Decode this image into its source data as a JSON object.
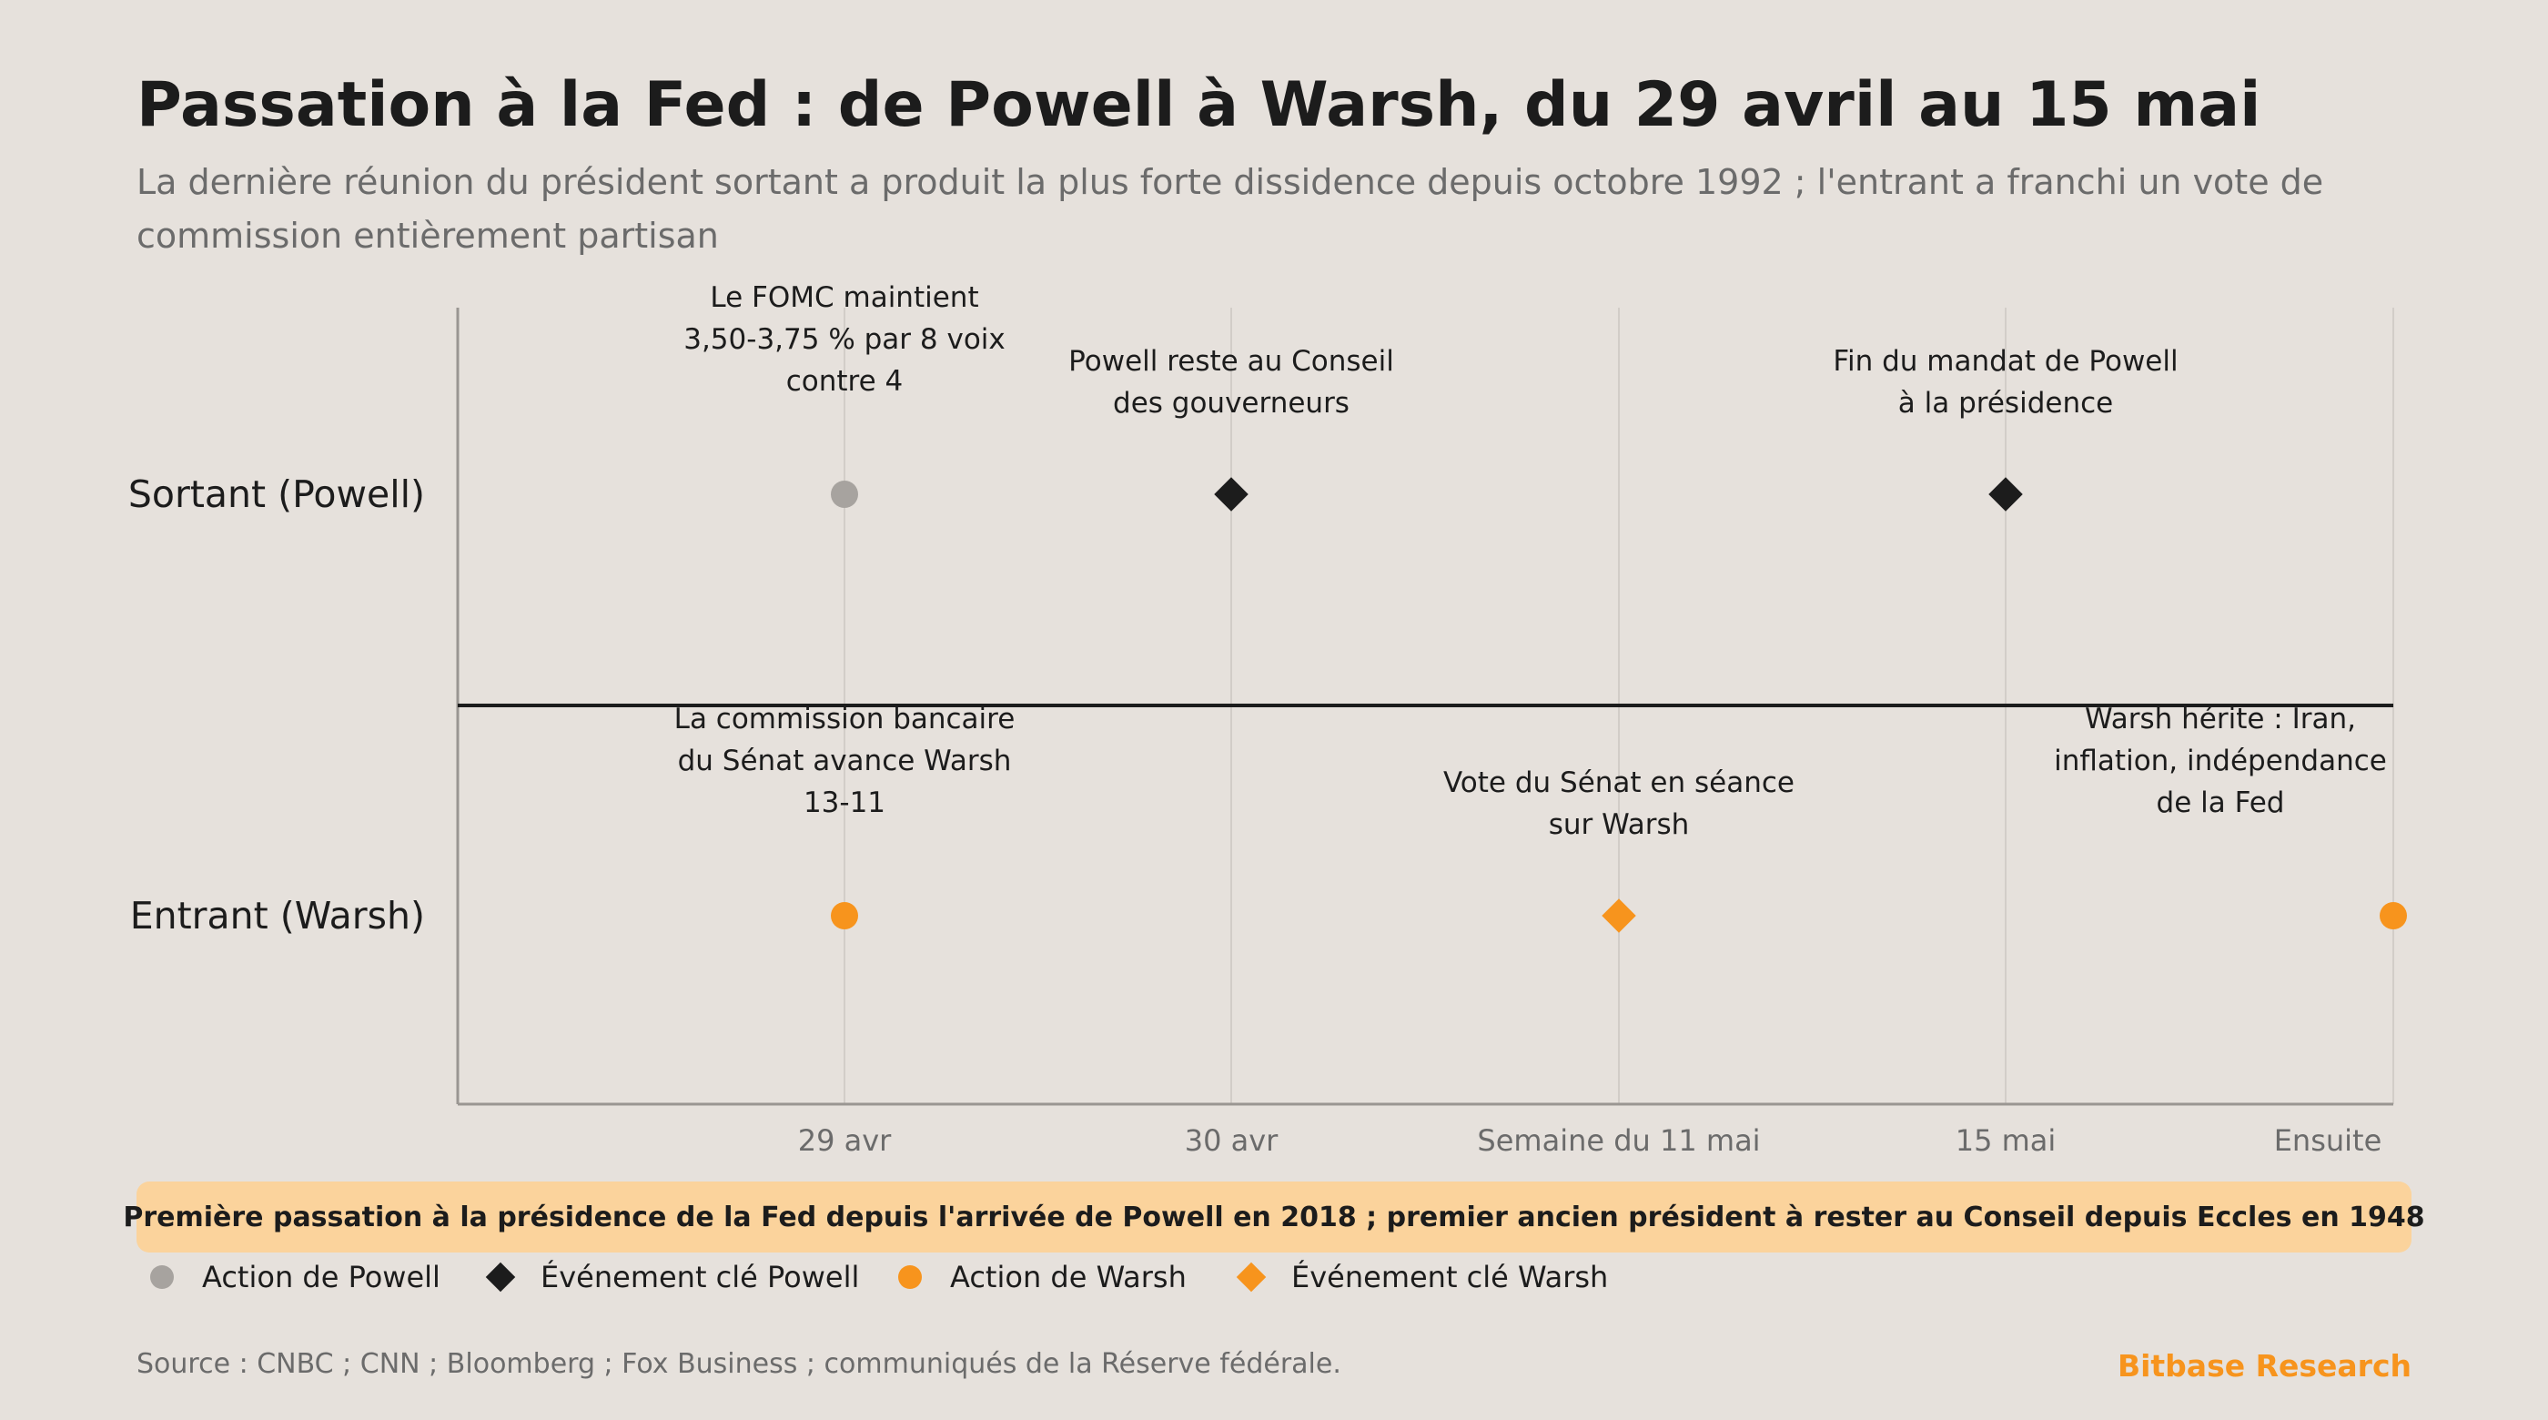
{
  "header": {
    "title": "Passation à la Fed : de Powell à Warsh, du 29 avril au 15 mai",
    "subtitle_lines": [
      "La dernière réunion du président sortant a produit la plus forte dissidence depuis octobre 1992 ; l'entrant a franchi un vote de",
      "commission entièrement partisan"
    ]
  },
  "colors": {
    "background": "#e6e1dc",
    "powell_action": "#a7a39f",
    "powell_key": "#1c1c1c",
    "warsh": "#f7941d",
    "banner": "#fbd39c",
    "gridline": "#d2cdc8",
    "axis": "#9a9692"
  },
  "chart_data": {
    "type": "timeline",
    "categories": [
      "29 avr",
      "30 avr",
      "Semaine du 11 mai",
      "15 mai",
      "Ensuite"
    ],
    "rows": [
      "Sortant (Powell)",
      "Entrant (Warsh)"
    ],
    "events": [
      {
        "row": 0,
        "x": 0,
        "marker": "circle",
        "color": "#a7a39f",
        "label": [
          "Le FOMC maintient",
          "3,50-3,75 % par 8 voix",
          "contre 4"
        ]
      },
      {
        "row": 0,
        "x": 1,
        "marker": "diamond",
        "color": "#1c1c1c",
        "label": [
          "Powell reste au Conseil",
          "des gouverneurs"
        ]
      },
      {
        "row": 0,
        "x": 3,
        "marker": "diamond",
        "color": "#1c1c1c",
        "label": [
          "Fin du mandat de Powell",
          "à la présidence"
        ]
      },
      {
        "row": 1,
        "x": 0,
        "marker": "circle",
        "color": "#f7941d",
        "label": [
          "La commission bancaire",
          "du Sénat avance Warsh",
          "13-11"
        ]
      },
      {
        "row": 1,
        "x": 2,
        "marker": "diamond",
        "color": "#f7941d",
        "label": [
          "Vote du Sénat en séance",
          "sur Warsh"
        ]
      },
      {
        "row": 1,
        "x": 4,
        "marker": "circle",
        "color": "#f7941d",
        "label": [
          "Warsh hérite : Iran,",
          "inflation, indépendance",
          "de la Fed"
        ]
      }
    ],
    "legend": [
      {
        "label": "Action de Powell",
        "marker": "circle",
        "color": "#a7a39f"
      },
      {
        "label": "Événement clé Powell",
        "marker": "diamond",
        "color": "#1c1c1c"
      },
      {
        "label": "Action de Warsh",
        "marker": "circle",
        "color": "#f7941d"
      },
      {
        "label": "Événement clé Warsh",
        "marker": "diamond",
        "color": "#f7941d"
      }
    ],
    "legend_position": "bottom-left",
    "grid": true
  },
  "banner": {
    "text": "Première passation à la présidence de la Fed depuis l'arrivée de Powell en 2018 ; premier ancien président à rester au Conseil depuis Eccles en 1948"
  },
  "footer": {
    "source": "Source : CNBC ; CNN ; Bloomberg ; Fox Business ; communiqués de la Réserve fédérale.",
    "brand": "Bitbase Research"
  }
}
